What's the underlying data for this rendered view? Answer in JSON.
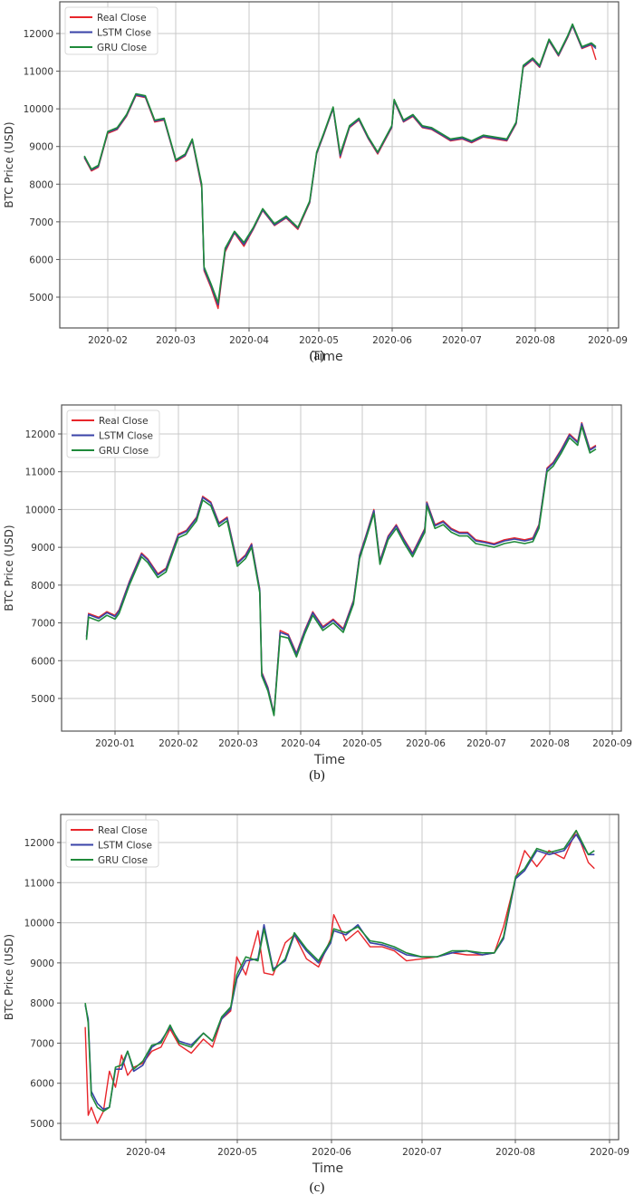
{
  "figure": {
    "captions": [
      "(a)",
      "(b)",
      "(c)"
    ]
  },
  "colors": {
    "real": "#e8262b",
    "lstm": "#3a43a8",
    "gru": "#1f8a3a",
    "grid": "#c8c8c8",
    "axis": "#555555"
  },
  "chart_data": [
    {
      "type": "line",
      "panel": "(a)",
      "title": "",
      "xlabel": "Time",
      "ylabel": "BTC Price (USD)",
      "ylim": [
        4200,
        12800
      ],
      "yticks": [
        5000,
        6000,
        7000,
        8000,
        9000,
        10000,
        11000,
        12000
      ],
      "xticks": [
        "2020-02",
        "2020-03",
        "2020-04",
        "2020-05",
        "2020-06",
        "2020-07",
        "2020-08",
        "2020-09"
      ],
      "grid": true,
      "legend": {
        "position": "upper left",
        "entries": [
          "Real Close",
          "LSTM Close",
          "GRU Close"
        ]
      },
      "x": [
        "2020-01-22",
        "2020-01-25",
        "2020-01-28",
        "2020-02-01",
        "2020-02-05",
        "2020-02-09",
        "2020-02-13",
        "2020-02-17",
        "2020-02-21",
        "2020-02-25",
        "2020-03-01",
        "2020-03-05",
        "2020-03-08",
        "2020-03-12",
        "2020-03-13",
        "2020-03-16",
        "2020-03-19",
        "2020-03-22",
        "2020-03-26",
        "2020-03-30",
        "2020-04-03",
        "2020-04-07",
        "2020-04-12",
        "2020-04-17",
        "2020-04-22",
        "2020-04-27",
        "2020-04-30",
        "2020-05-03",
        "2020-05-07",
        "2020-05-10",
        "2020-05-14",
        "2020-05-18",
        "2020-05-22",
        "2020-05-26",
        "2020-06-01",
        "2020-06-02",
        "2020-06-06",
        "2020-06-10",
        "2020-06-14",
        "2020-06-18",
        "2020-06-22",
        "2020-06-26",
        "2020-07-01",
        "2020-07-05",
        "2020-07-10",
        "2020-07-15",
        "2020-07-20",
        "2020-07-24",
        "2020-07-27",
        "2020-07-31",
        "2020-08-03",
        "2020-08-07",
        "2020-08-11",
        "2020-08-15",
        "2020-08-17",
        "2020-08-21",
        "2020-08-25",
        "2020-08-27"
      ],
      "series": [
        {
          "name": "Real Close",
          "values": [
            8700,
            8350,
            8450,
            9350,
            9450,
            9800,
            10350,
            10300,
            9650,
            9700,
            8600,
            8750,
            9150,
            7900,
            5700,
            5250,
            4700,
            6200,
            6700,
            6350,
            6800,
            7300,
            6900,
            7100,
            6800,
            7500,
            8800,
            9300,
            10000,
            8700,
            9500,
            9700,
            9200,
            8800,
            9500,
            10200,
            9650,
            9800,
            9500,
            9450,
            9300,
            9150,
            9200,
            9100,
            9250,
            9200,
            9150,
            9600,
            11100,
            11300,
            11100,
            11800,
            11400,
            11900,
            12200,
            11600,
            11700,
            11300
          ]
        },
        {
          "name": "LSTM Close",
          "values": [
            8720,
            8380,
            8470,
            9380,
            9470,
            9820,
            10370,
            10320,
            9680,
            9720,
            8630,
            8770,
            9170,
            7950,
            5750,
            5300,
            4800,
            6250,
            6720,
            6400,
            6820,
            7320,
            6920,
            7120,
            6830,
            7520,
            8820,
            9320,
            10020,
            8750,
            9520,
            9720,
            9220,
            8830,
            9520,
            10220,
            9670,
            9820,
            9520,
            9470,
            9320,
            9170,
            9220,
            9120,
            9270,
            9220,
            9170,
            9620,
            11120,
            11320,
            11120,
            11820,
            11420,
            11920,
            12220,
            11620,
            11720,
            11600
          ]
        },
        {
          "name": "GRU Close",
          "values": [
            8750,
            8400,
            8500,
            9400,
            9500,
            9850,
            10400,
            10350,
            9700,
            9750,
            8650,
            8800,
            9200,
            8000,
            5800,
            5350,
            4850,
            6300,
            6750,
            6450,
            6850,
            7350,
            6950,
            7150,
            6850,
            7550,
            8850,
            9350,
            10050,
            8800,
            9550,
            9750,
            9250,
            8850,
            9550,
            10250,
            9700,
            9850,
            9550,
            9500,
            9350,
            9200,
            9250,
            9150,
            9300,
            9250,
            9200,
            9650,
            11150,
            11350,
            11150,
            11850,
            11450,
            11950,
            12250,
            11650,
            11750,
            11650
          ]
        }
      ]
    },
    {
      "type": "line",
      "panel": "(b)",
      "title": "",
      "xlabel": "Time",
      "ylabel": "BTC Price (USD)",
      "ylim": [
        4200,
        12800
      ],
      "yticks": [
        5000,
        6000,
        7000,
        8000,
        9000,
        10000,
        11000,
        12000
      ],
      "xticks": [
        "2020-01",
        "2020-02",
        "2020-03",
        "2020-04",
        "2020-05",
        "2020-06",
        "2020-07",
        "2020-08",
        "2020-09"
      ],
      "grid": true,
      "legend": {
        "position": "upper left",
        "entries": [
          "Real Close",
          "LSTM Close",
          "GRU Close"
        ]
      },
      "x": [
        "2019-12-18",
        "2019-12-19",
        "2019-12-24",
        "2019-12-28",
        "2020-01-01",
        "2020-01-03",
        "2020-01-08",
        "2020-01-14",
        "2020-01-17",
        "2020-01-22",
        "2020-01-26",
        "2020-02-01",
        "2020-02-05",
        "2020-02-10",
        "2020-02-13",
        "2020-02-17",
        "2020-02-21",
        "2020-02-25",
        "2020-03-01",
        "2020-03-05",
        "2020-03-08",
        "2020-03-12",
        "2020-03-13",
        "2020-03-16",
        "2020-03-19",
        "2020-03-22",
        "2020-03-26",
        "2020-03-30",
        "2020-04-03",
        "2020-04-07",
        "2020-04-12",
        "2020-04-17",
        "2020-04-22",
        "2020-04-27",
        "2020-04-30",
        "2020-05-03",
        "2020-05-07",
        "2020-05-10",
        "2020-05-14",
        "2020-05-18",
        "2020-05-22",
        "2020-05-26",
        "2020-06-01",
        "2020-06-02",
        "2020-06-06",
        "2020-06-10",
        "2020-06-14",
        "2020-06-18",
        "2020-06-22",
        "2020-06-26",
        "2020-07-01",
        "2020-07-05",
        "2020-07-10",
        "2020-07-15",
        "2020-07-20",
        "2020-07-24",
        "2020-07-27",
        "2020-07-31",
        "2020-08-03",
        "2020-08-07",
        "2020-08-11",
        "2020-08-15",
        "2020-08-17",
        "2020-08-21",
        "2020-08-24"
      ],
      "series": [
        {
          "name": "Real Close",
          "values": [
            6650,
            7250,
            7150,
            7300,
            7200,
            7350,
            8100,
            8850,
            8700,
            8300,
            8450,
            9350,
            9450,
            9800,
            10350,
            10200,
            9650,
            9800,
            8600,
            8800,
            9100,
            7900,
            5700,
            5300,
            4600,
            6800,
            6700,
            6200,
            6800,
            7300,
            6900,
            7100,
            6850,
            7600,
            8800,
            9300,
            10000,
            8650,
            9300,
            9600,
            9200,
            8850,
            9500,
            10200,
            9600,
            9700,
            9500,
            9400,
            9400,
            9200,
            9150,
            9100,
            9200,
            9250,
            9200,
            9250,
            9600,
            11100,
            11250,
            11600,
            12000,
            11800,
            12300,
            11600,
            11700
          ]
        },
        {
          "name": "LSTM Close",
          "values": [
            6620,
            7220,
            7120,
            7270,
            7170,
            7320,
            8070,
            8820,
            8670,
            8270,
            8420,
            9320,
            9420,
            9770,
            10320,
            10170,
            9620,
            9770,
            8570,
            8770,
            9070,
            7870,
            5670,
            5270,
            4580,
            6750,
            6670,
            6170,
            6770,
            7270,
            6870,
            7070,
            6820,
            7570,
            8770,
            9270,
            9970,
            8620,
            9270,
            9570,
            9170,
            8820,
            9470,
            10170,
            9570,
            9670,
            9470,
            9370,
            9370,
            9170,
            9120,
            9070,
            9170,
            9220,
            9170,
            9220,
            9570,
            11070,
            11220,
            11570,
            11970,
            11770,
            12270,
            11570,
            11670
          ]
        },
        {
          "name": "GRU Close",
          "values": [
            6550,
            7150,
            7050,
            7200,
            7100,
            7250,
            8000,
            8750,
            8600,
            8200,
            8350,
            9250,
            9350,
            9700,
            10250,
            10100,
            9550,
            9700,
            8500,
            8700,
            9000,
            7800,
            5600,
            5200,
            4550,
            6650,
            6600,
            6100,
            6700,
            7200,
            6800,
            7000,
            6750,
            7500,
            8700,
            9200,
            9900,
            8550,
            9200,
            9500,
            9100,
            8750,
            9400,
            10100,
            9500,
            9600,
            9400,
            9300,
            9300,
            9100,
            9050,
            9000,
            9100,
            9150,
            9100,
            9150,
            9500,
            11000,
            11150,
            11500,
            11900,
            11700,
            12200,
            11500,
            11600
          ]
        }
      ]
    },
    {
      "type": "line",
      "panel": "(c)",
      "title": "",
      "xlabel": "Time",
      "ylabel": "BTC Price (USD)",
      "ylim": [
        4600,
        12800
      ],
      "yticks": [
        5000,
        6000,
        7000,
        8000,
        9000,
        10000,
        11000,
        12000
      ],
      "xticks": [
        "2020-04",
        "2020-05",
        "2020-06",
        "2020-07",
        "2020-08",
        "2020-09"
      ],
      "grid": true,
      "legend": {
        "position": "upper left",
        "entries": [
          "Real Close",
          "LSTM Close",
          "GRU Close"
        ]
      },
      "x": [
        "2020-03-12",
        "2020-03-13",
        "2020-03-14",
        "2020-03-16",
        "2020-03-18",
        "2020-03-20",
        "2020-03-22",
        "2020-03-24",
        "2020-03-26",
        "2020-03-28",
        "2020-03-31",
        "2020-04-03",
        "2020-04-06",
        "2020-04-09",
        "2020-04-12",
        "2020-04-16",
        "2020-04-20",
        "2020-04-23",
        "2020-04-26",
        "2020-04-29",
        "2020-05-01",
        "2020-05-04",
        "2020-05-08",
        "2020-05-10",
        "2020-05-13",
        "2020-05-17",
        "2020-05-20",
        "2020-05-24",
        "2020-05-28",
        "2020-06-01",
        "2020-06-02",
        "2020-06-06",
        "2020-06-10",
        "2020-06-14",
        "2020-06-18",
        "2020-06-22",
        "2020-06-26",
        "2020-07-01",
        "2020-07-06",
        "2020-07-11",
        "2020-07-16",
        "2020-07-21",
        "2020-07-25",
        "2020-07-28",
        "2020-08-01",
        "2020-08-04",
        "2020-08-08",
        "2020-08-12",
        "2020-08-17",
        "2020-08-21",
        "2020-08-25",
        "2020-08-27"
      ],
      "series": [
        {
          "name": "Real Close",
          "values": [
            7400,
            5200,
            5400,
            5000,
            5300,
            6300,
            5900,
            6700,
            6200,
            6400,
            6500,
            6800,
            6900,
            7350,
            6950,
            6750,
            7100,
            6900,
            7600,
            7800,
            9150,
            8700,
            9800,
            8750,
            8700,
            9500,
            9700,
            9100,
            8900,
            9600,
            10200,
            9550,
            9800,
            9400,
            9400,
            9300,
            9050,
            9100,
            9150,
            9250,
            9200,
            9200,
            9250,
            9900,
            11100,
            11800,
            11400,
            11800,
            11600,
            12300,
            11500,
            11350
          ]
        },
        {
          "name": "LSTM Close",
          "values": [
            7950,
            7600,
            5800,
            5500,
            5350,
            5400,
            6350,
            6350,
            6800,
            6300,
            6450,
            6900,
            7050,
            7400,
            7050,
            6950,
            7250,
            7050,
            7600,
            7850,
            8600,
            9050,
            9100,
            9950,
            8850,
            9050,
            9700,
            9300,
            9000,
            9500,
            9800,
            9700,
            9950,
            9500,
            9450,
            9350,
            9200,
            9150,
            9150,
            9250,
            9300,
            9200,
            9250,
            9600,
            11100,
            11300,
            11800,
            11700,
            11800,
            12200,
            11700,
            11700
          ]
        },
        {
          "name": "GRU Close",
          "values": [
            8000,
            7500,
            5700,
            5400,
            5300,
            5400,
            6400,
            6450,
            6800,
            6350,
            6550,
            6950,
            7000,
            7450,
            7000,
            6900,
            7250,
            7050,
            7650,
            7900,
            8700,
            9150,
            9050,
            9850,
            8800,
            9100,
            9750,
            9350,
            9050,
            9550,
            9850,
            9750,
            9900,
            9550,
            9500,
            9400,
            9250,
            9150,
            9150,
            9300,
            9300,
            9250,
            9250,
            9650,
            11150,
            11350,
            11850,
            11750,
            11850,
            12300,
            11700,
            11800
          ]
        }
      ]
    }
  ]
}
